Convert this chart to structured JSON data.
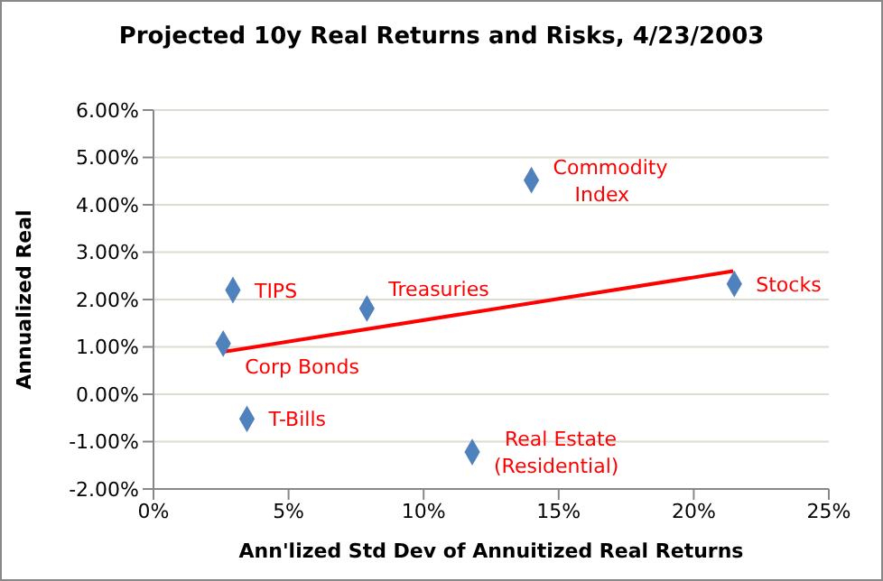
{
  "chart_data": {
    "type": "scatter",
    "title": "Projected 10y Real Returns and Risks, 4/23/2003",
    "xlabel": "Ann'lized Std Dev of Annuitized Real Returns",
    "ylabel": "Annualized Real",
    "xlim": [
      0,
      25
    ],
    "xticks": [
      {
        "value": 0,
        "label": "0%"
      },
      {
        "value": 5,
        "label": "5%"
      },
      {
        "value": 10,
        "label": "10%"
      },
      {
        "value": 15,
        "label": "15%"
      },
      {
        "value": 20,
        "label": "20%"
      },
      {
        "value": 25,
        "label": "25%"
      }
    ],
    "ylim": [
      -2,
      6
    ],
    "yticks": [
      {
        "value": -2,
        "label": "-2.00%"
      },
      {
        "value": -1,
        "label": "-1.00%"
      },
      {
        "value": 0,
        "label": "0.00%"
      },
      {
        "value": 1,
        "label": "1.00%"
      },
      {
        "value": 2,
        "label": "2.00%"
      },
      {
        "value": 3,
        "label": "3.00%"
      },
      {
        "value": 4,
        "label": "4.00%"
      },
      {
        "value": 5,
        "label": "5.00%"
      },
      {
        "value": 6,
        "label": "6.00%"
      }
    ],
    "grid": "y",
    "marker": "diamond",
    "series": [
      {
        "color": "#4f81bd",
        "x": [
          2.94,
          2.58,
          3.46,
          7.9,
          13.99,
          21.5,
          11.8
        ],
        "values": [
          2.2,
          1.07,
          -0.52,
          1.81,
          4.52,
          2.33,
          -1.22
        ]
      },
      {
        "type": "line",
        "color": "#ff0000",
        "marker": "none",
        "x": [
          2.52,
          21.46
        ],
        "values": [
          0.89,
          2.6
        ]
      }
    ],
    "annotations": [
      {
        "text": "TIPS",
        "x": 2.94,
        "y": 2.2
      },
      {
        "text": "Corp Bonds",
        "x": 2.58,
        "y": 1.07
      },
      {
        "text": "T-Bills",
        "x": 3.46,
        "y": -0.52
      },
      {
        "text": "Treasuries",
        "x": 7.9,
        "y": 1.81
      },
      {
        "text": "Commodity Index",
        "x": 13.99,
        "y": 4.52
      },
      {
        "text": "Stocks",
        "x": 21.5,
        "y": 2.33
      },
      {
        "text": "Real Estate (Residential)",
        "x": 11.8,
        "y": -1.22
      }
    ]
  }
}
